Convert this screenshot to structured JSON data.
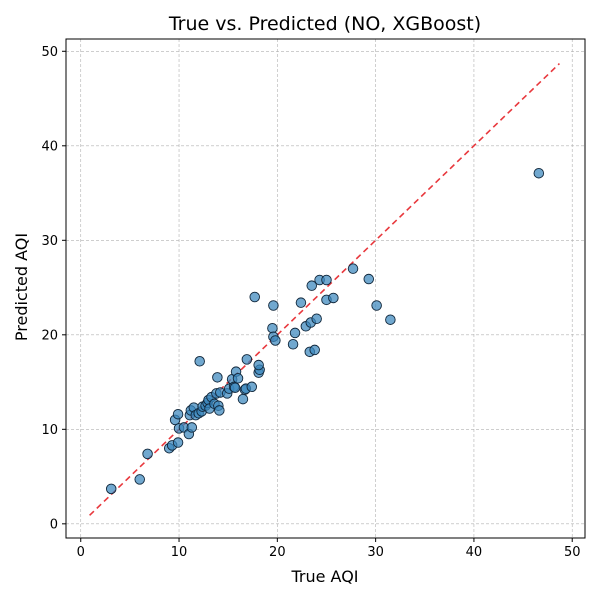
{
  "chart_data": {
    "type": "scatter",
    "title": "True vs. Predicted (NO, XGBoost)",
    "xlabel": "True AQI",
    "ylabel": "Predicted AQI",
    "xlim": [
      -1.5,
      51.3
    ],
    "ylim": [
      -1.5,
      51.3
    ],
    "xticks": [
      0,
      10,
      20,
      30,
      40,
      50
    ],
    "yticks": [
      0,
      10,
      20,
      30,
      40,
      50
    ],
    "grid": true,
    "reference_line": {
      "x": [
        0.9,
        48.7
      ],
      "y": [
        0.9,
        48.7
      ],
      "style": "dashed",
      "color": "#e8383d"
    },
    "colors": {
      "marker_fill": "#3a87bd",
      "marker_edge": "#10263a",
      "grid": "#b0b0b0"
    },
    "points": [
      {
        "x": 3.1,
        "y": 3.7
      },
      {
        "x": 6.0,
        "y": 4.7
      },
      {
        "x": 6.8,
        "y": 7.4
      },
      {
        "x": 9.0,
        "y": 8.0
      },
      {
        "x": 9.3,
        "y": 8.3
      },
      {
        "x": 9.9,
        "y": 8.6
      },
      {
        "x": 9.6,
        "y": 11.0
      },
      {
        "x": 9.9,
        "y": 11.6
      },
      {
        "x": 10.0,
        "y": 10.1
      },
      {
        "x": 10.5,
        "y": 10.2
      },
      {
        "x": 11.0,
        "y": 9.5
      },
      {
        "x": 11.3,
        "y": 10.2
      },
      {
        "x": 11.1,
        "y": 11.5
      },
      {
        "x": 11.2,
        "y": 12.0
      },
      {
        "x": 11.5,
        "y": 12.3
      },
      {
        "x": 11.7,
        "y": 11.5
      },
      {
        "x": 12.0,
        "y": 11.7
      },
      {
        "x": 12.3,
        "y": 11.9
      },
      {
        "x": 12.4,
        "y": 12.4
      },
      {
        "x": 12.7,
        "y": 12.5
      },
      {
        "x": 12.9,
        "y": 12.8
      },
      {
        "x": 13.0,
        "y": 13.1
      },
      {
        "x": 13.1,
        "y": 12.2
      },
      {
        "x": 13.3,
        "y": 13.4
      },
      {
        "x": 13.6,
        "y": 12.7
      },
      {
        "x": 13.8,
        "y": 13.8
      },
      {
        "x": 14.0,
        "y": 12.5
      },
      {
        "x": 14.1,
        "y": 12.0
      },
      {
        "x": 14.2,
        "y": 13.9
      },
      {
        "x": 12.1,
        "y": 17.2
      },
      {
        "x": 13.9,
        "y": 15.5
      },
      {
        "x": 14.9,
        "y": 13.8
      },
      {
        "x": 15.1,
        "y": 14.3
      },
      {
        "x": 15.4,
        "y": 15.3
      },
      {
        "x": 15.6,
        "y": 14.5
      },
      {
        "x": 15.7,
        "y": 14.4
      },
      {
        "x": 15.8,
        "y": 16.1
      },
      {
        "x": 16.0,
        "y": 15.4
      },
      {
        "x": 16.5,
        "y": 13.2
      },
      {
        "x": 16.7,
        "y": 14.2
      },
      {
        "x": 16.8,
        "y": 14.3
      },
      {
        "x": 16.9,
        "y": 17.4
      },
      {
        "x": 17.4,
        "y": 14.5
      },
      {
        "x": 17.7,
        "y": 24.0
      },
      {
        "x": 18.1,
        "y": 16.0
      },
      {
        "x": 18.2,
        "y": 16.3
      },
      {
        "x": 18.1,
        "y": 16.8
      },
      {
        "x": 19.5,
        "y": 20.7
      },
      {
        "x": 19.6,
        "y": 19.8
      },
      {
        "x": 19.8,
        "y": 19.4
      },
      {
        "x": 19.6,
        "y": 23.1
      },
      {
        "x": 21.6,
        "y": 19.0
      },
      {
        "x": 21.8,
        "y": 20.2
      },
      {
        "x": 22.4,
        "y": 23.4
      },
      {
        "x": 22.9,
        "y": 20.9
      },
      {
        "x": 23.3,
        "y": 18.2
      },
      {
        "x": 23.4,
        "y": 21.3
      },
      {
        "x": 23.5,
        "y": 25.2
      },
      {
        "x": 23.8,
        "y": 18.4
      },
      {
        "x": 24.0,
        "y": 21.7
      },
      {
        "x": 24.3,
        "y": 25.8
      },
      {
        "x": 25.0,
        "y": 23.7
      },
      {
        "x": 25.0,
        "y": 25.8
      },
      {
        "x": 25.7,
        "y": 23.9
      },
      {
        "x": 27.7,
        "y": 27.0
      },
      {
        "x": 29.3,
        "y": 25.9
      },
      {
        "x": 30.1,
        "y": 23.1
      },
      {
        "x": 31.5,
        "y": 21.6
      },
      {
        "x": 46.6,
        "y": 37.1
      }
    ]
  }
}
